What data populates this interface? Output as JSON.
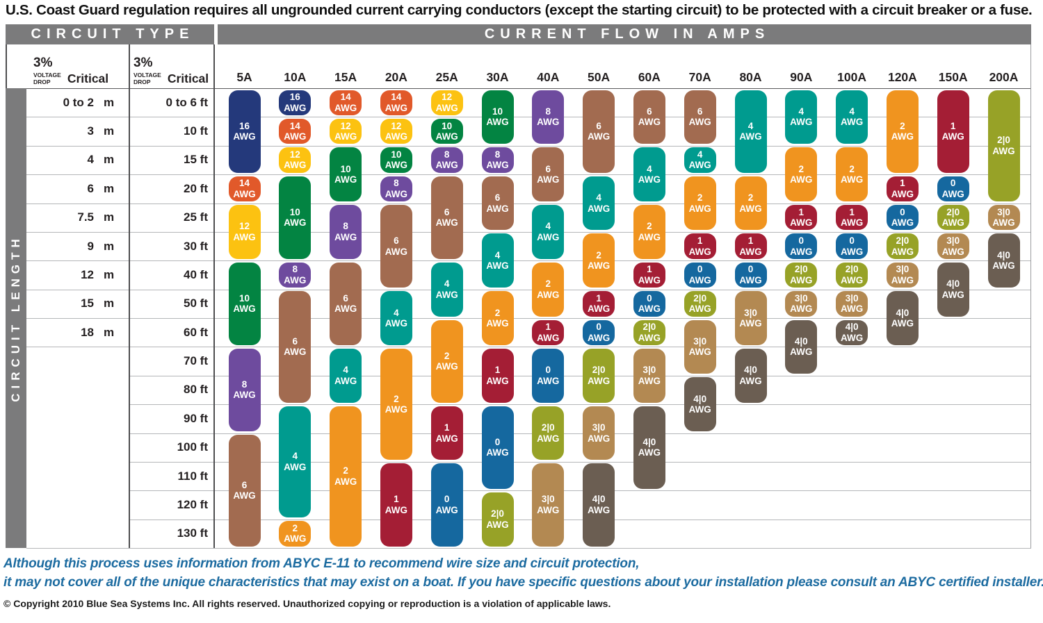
{
  "title": "U.S. Coast Guard regulation requires all ungrounded current carrying conductors (except the starting circuit) to be protected with a circuit breaker or a fuse.",
  "headers": {
    "circuit_type": "CIRCUIT TYPE",
    "current_flow": "CURRENT FLOW IN AMPS",
    "circuit_length": "CIRCUIT LENGTH",
    "voltage_pct": "3%",
    "voltage_word": "VOLTAGE",
    "drop_word": "DROP",
    "critical": "Critical",
    "meter_unit": "m"
  },
  "footer": {
    "line1": "Although this process uses information from  ABYC E-11 to recommend wire size and circuit protection,",
    "line2": "it may not cover all of the unique characteristics that may exist on a boat. If you have specific questions about your installation please consult an ABYC certified installer.",
    "copyright": "© Copyright 2010 Blue Sea Systems Inc. All rights reserved. Unauthorized copying or reproduction is a violation of applicable laws."
  },
  "colors": {
    "bar_gray": "#7b7b7c",
    "footer_blue": "#1c6ba0",
    "gauge": {
      "16": "#24397b",
      "14": "#e1592a",
      "12": "#fcc211",
      "10": "#038442",
      "8": "#6e4b9e",
      "6": "#a26b50",
      "4": "#009b8f",
      "2": "#f0941f",
      "1": "#a41e35",
      "0": "#15689f",
      "2|0": "#97a227",
      "3|0": "#b38952",
      "4|0": "#6b5e52"
    }
  },
  "chart_data": {
    "type": "heatmap",
    "title": "Recommended wire gauge (AWG) by circuit length and current flow (3% voltage drop, critical circuits)",
    "x_label": "CURRENT FLOW IN AMPS",
    "y_label": "CIRCUIT LENGTH",
    "awg_suffix": "AWG",
    "columns": [
      "5A",
      "10A",
      "15A",
      "20A",
      "25A",
      "30A",
      "40A",
      "50A",
      "60A",
      "70A",
      "80A",
      "90A",
      "100A",
      "120A",
      "150A",
      "200A"
    ],
    "rows": [
      {
        "m": "0 to 2",
        "ft": "0 to 6 ft"
      },
      {
        "m": "3",
        "ft": "10 ft"
      },
      {
        "m": "4",
        "ft": "15 ft"
      },
      {
        "m": "6",
        "ft": "20 ft"
      },
      {
        "m": "7.5",
        "ft": "25 ft"
      },
      {
        "m": "9",
        "ft": "30 ft"
      },
      {
        "m": "12",
        "ft": "40 ft"
      },
      {
        "m": "15",
        "ft": "50 ft"
      },
      {
        "m": "18",
        "ft": "60 ft"
      },
      {
        "m": null,
        "ft": "70 ft"
      },
      {
        "m": null,
        "ft": "80 ft"
      },
      {
        "m": null,
        "ft": "90 ft"
      },
      {
        "m": null,
        "ft": "100 ft"
      },
      {
        "m": null,
        "ft": "110 ft"
      },
      {
        "m": null,
        "ft": "120 ft"
      },
      {
        "m": null,
        "ft": "130 ft"
      }
    ],
    "blocks": {
      "5A": [
        {
          "awg": "16",
          "span": 3
        },
        {
          "awg": "14",
          "span": 1
        },
        {
          "awg": "12",
          "span": 2
        },
        {
          "awg": "10",
          "span": 3
        },
        {
          "awg": "8",
          "span": 3
        },
        {
          "awg": "6",
          "span": 4
        }
      ],
      "10A": [
        {
          "awg": "16",
          "span": 1
        },
        {
          "awg": "14",
          "span": 1
        },
        {
          "awg": "12",
          "span": 1
        },
        {
          "awg": "10",
          "span": 3
        },
        {
          "awg": "8",
          "span": 1
        },
        {
          "awg": "6",
          "span": 4
        },
        {
          "awg": "4",
          "span": 4
        },
        {
          "awg": "2",
          "span": 1
        }
      ],
      "15A": [
        {
          "awg": "14",
          "span": 1
        },
        {
          "awg": "12",
          "span": 1
        },
        {
          "awg": "10",
          "span": 2
        },
        {
          "awg": "8",
          "span": 2
        },
        {
          "awg": "6",
          "span": 3
        },
        {
          "awg": "4",
          "span": 2
        },
        {
          "awg": "2",
          "span": 5
        }
      ],
      "20A": [
        {
          "awg": "14",
          "span": 1
        },
        {
          "awg": "12",
          "span": 1
        },
        {
          "awg": "10",
          "span": 1
        },
        {
          "awg": "8",
          "span": 1
        },
        {
          "awg": "6",
          "span": 3
        },
        {
          "awg": "4",
          "span": 2
        },
        {
          "awg": "2",
          "span": 4
        },
        {
          "awg": "1",
          "span": 3
        }
      ],
      "25A": [
        {
          "awg": "12",
          "span": 1
        },
        {
          "awg": "10",
          "span": 1
        },
        {
          "awg": "8",
          "span": 1
        },
        {
          "awg": "6",
          "span": 3
        },
        {
          "awg": "4",
          "span": 2
        },
        {
          "awg": "2",
          "span": 3
        },
        {
          "awg": "1",
          "span": 2
        },
        {
          "awg": "0",
          "span": 3
        }
      ],
      "30A": [
        {
          "awg": "10",
          "span": 2
        },
        {
          "awg": "8",
          "span": 1
        },
        {
          "awg": "6",
          "span": 2
        },
        {
          "awg": "4",
          "span": 2
        },
        {
          "awg": "2",
          "span": 2
        },
        {
          "awg": "1",
          "span": 2
        },
        {
          "awg": "0",
          "span": 3
        },
        {
          "awg": "2|0",
          "span": 2
        }
      ],
      "40A": [
        {
          "awg": "8",
          "span": 2
        },
        {
          "awg": "6",
          "span": 2
        },
        {
          "awg": "4",
          "span": 2
        },
        {
          "awg": "2",
          "span": 2
        },
        {
          "awg": "1",
          "span": 1
        },
        {
          "awg": "0",
          "span": 2
        },
        {
          "awg": "2|0",
          "span": 2
        },
        {
          "awg": "3|0",
          "span": 3
        }
      ],
      "50A": [
        {
          "awg": "6",
          "span": 3
        },
        {
          "awg": "4",
          "span": 2
        },
        {
          "awg": "2",
          "span": 2
        },
        {
          "awg": "1",
          "span": 1
        },
        {
          "awg": "0",
          "span": 1
        },
        {
          "awg": "2|0",
          "span": 2
        },
        {
          "awg": "3|0",
          "span": 2
        },
        {
          "awg": "4|0",
          "span": 3
        }
      ],
      "60A": [
        {
          "awg": "6",
          "span": 2
        },
        {
          "awg": "4",
          "span": 2
        },
        {
          "awg": "2",
          "span": 2
        },
        {
          "awg": "1",
          "span": 1
        },
        {
          "awg": "0",
          "span": 1
        },
        {
          "awg": "2|0",
          "span": 1
        },
        {
          "awg": "3|0",
          "span": 2
        },
        {
          "awg": "4|0",
          "span": 3
        }
      ],
      "70A": [
        {
          "awg": "6",
          "span": 2
        },
        {
          "awg": "4",
          "span": 1
        },
        {
          "awg": "2",
          "span": 2
        },
        {
          "awg": "1",
          "span": 1
        },
        {
          "awg": "0",
          "span": 1
        },
        {
          "awg": "2|0",
          "span": 1
        },
        {
          "awg": "3|0",
          "span": 2
        },
        {
          "awg": "4|0",
          "span": 2
        }
      ],
      "80A": [
        {
          "awg": "4",
          "span": 3
        },
        {
          "awg": "2",
          "span": 2
        },
        {
          "awg": "1",
          "span": 1
        },
        {
          "awg": "0",
          "span": 1
        },
        {
          "awg": "3|0",
          "span": 2
        },
        {
          "awg": "4|0",
          "span": 2
        }
      ],
      "90A": [
        {
          "awg": "4",
          "span": 2
        },
        {
          "awg": "2",
          "span": 2
        },
        {
          "awg": "1",
          "span": 1
        },
        {
          "awg": "0",
          "span": 1
        },
        {
          "awg": "2|0",
          "span": 1
        },
        {
          "awg": "3|0",
          "span": 1
        },
        {
          "awg": "4|0",
          "span": 2
        }
      ],
      "100A": [
        {
          "awg": "4",
          "span": 2
        },
        {
          "awg": "2",
          "span": 2
        },
        {
          "awg": "1",
          "span": 1
        },
        {
          "awg": "0",
          "span": 1
        },
        {
          "awg": "2|0",
          "span": 1
        },
        {
          "awg": "3|0",
          "span": 1
        },
        {
          "awg": "4|0",
          "span": 1
        }
      ],
      "120A": [
        {
          "awg": "2",
          "span": 3
        },
        {
          "awg": "1",
          "span": 1
        },
        {
          "awg": "0",
          "span": 1
        },
        {
          "awg": "2|0",
          "span": 1
        },
        {
          "awg": "3|0",
          "span": 1
        },
        {
          "awg": "4|0",
          "span": 2
        }
      ],
      "150A": [
        {
          "awg": "1",
          "span": 3
        },
        {
          "awg": "0",
          "span": 1
        },
        {
          "awg": "2|0",
          "span": 1
        },
        {
          "awg": "3|0",
          "span": 1
        },
        {
          "awg": "4|0",
          "span": 2
        }
      ],
      "200A": [
        {
          "awg": "2|0",
          "span": 4
        },
        {
          "awg": "3|0",
          "span": 1
        },
        {
          "awg": "4|0",
          "span": 2
        }
      ]
    }
  }
}
